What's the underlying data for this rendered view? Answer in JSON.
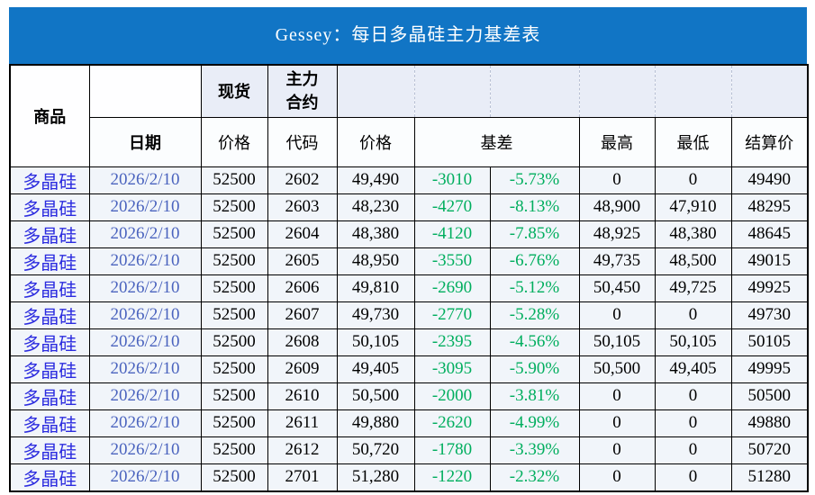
{
  "title": "Gessey：每日多晶硅主力基差表",
  "colors": {
    "title_bg": "#1175C5",
    "green": "#00AE5E",
    "com_blue": "#2B2BDF",
    "date_blue": "#4A63BE",
    "lav": "#E9EDF7",
    "row_bg": "#F1F5FA",
    "head2_bg": "#FBFDFE",
    "dash": "#B8C0D4"
  },
  "chart_data": {
    "type": "table",
    "title": "Gessey：每日多晶硅主力基差表",
    "header": {
      "commodity": "商品",
      "date": "日期",
      "spot": "现货",
      "main_contract": "主力合约",
      "price_spot": "价格",
      "code": "代码",
      "price_contract": "价格",
      "basis": "基差",
      "high": "最高",
      "low": "最低",
      "settlement": "结算价"
    },
    "rows": [
      {
        "commodity": "多晶硅",
        "date": "2026/2/10",
        "spot_price": "52500",
        "code": "2602",
        "price": "49,490",
        "basis": "-3010",
        "basis_pct": "-5.73%",
        "high": "0",
        "low": "0",
        "settle": "49490"
      },
      {
        "commodity": "多晶硅",
        "date": "2026/2/10",
        "spot_price": "52500",
        "code": "2603",
        "price": "48,230",
        "basis": "-4270",
        "basis_pct": "-8.13%",
        "high": "48,900",
        "low": "47,910",
        "settle": "48295"
      },
      {
        "commodity": "多晶硅",
        "date": "2026/2/10",
        "spot_price": "52500",
        "code": "2604",
        "price": "48,380",
        "basis": "-4120",
        "basis_pct": "-7.85%",
        "high": "48,925",
        "low": "48,380",
        "settle": "48645"
      },
      {
        "commodity": "多晶硅",
        "date": "2026/2/10",
        "spot_price": "52500",
        "code": "2605",
        "price": "48,950",
        "basis": "-3550",
        "basis_pct": "-6.76%",
        "high": "49,735",
        "low": "48,500",
        "settle": "49015"
      },
      {
        "commodity": "多晶硅",
        "date": "2026/2/10",
        "spot_price": "52500",
        "code": "2606",
        "price": "49,810",
        "basis": "-2690",
        "basis_pct": "-5.12%",
        "high": "50,450",
        "low": "49,725",
        "settle": "49925"
      },
      {
        "commodity": "多晶硅",
        "date": "2026/2/10",
        "spot_price": "52500",
        "code": "2607",
        "price": "49,730",
        "basis": "-2770",
        "basis_pct": "-5.28%",
        "high": "0",
        "low": "0",
        "settle": "49730"
      },
      {
        "commodity": "多晶硅",
        "date": "2026/2/10",
        "spot_price": "52500",
        "code": "2608",
        "price": "50,105",
        "basis": "-2395",
        "basis_pct": "-4.56%",
        "high": "50,105",
        "low": "50,105",
        "settle": "50105"
      },
      {
        "commodity": "多晶硅",
        "date": "2026/2/10",
        "spot_price": "52500",
        "code": "2609",
        "price": "49,405",
        "basis": "-3095",
        "basis_pct": "-5.90%",
        "high": "50,500",
        "low": "49,405",
        "settle": "49995"
      },
      {
        "commodity": "多晶硅",
        "date": "2026/2/10",
        "spot_price": "52500",
        "code": "2610",
        "price": "50,500",
        "basis": "-2000",
        "basis_pct": "-3.81%",
        "high": "0",
        "low": "0",
        "settle": "50500"
      },
      {
        "commodity": "多晶硅",
        "date": "2026/2/10",
        "spot_price": "52500",
        "code": "2611",
        "price": "49,880",
        "basis": "-2620",
        "basis_pct": "-4.99%",
        "high": "0",
        "low": "0",
        "settle": "49880"
      },
      {
        "commodity": "多晶硅",
        "date": "2026/2/10",
        "spot_price": "52500",
        "code": "2612",
        "price": "50,720",
        "basis": "-1780",
        "basis_pct": "-3.39%",
        "high": "0",
        "low": "0",
        "settle": "50720"
      },
      {
        "commodity": "多晶硅",
        "date": "2026/2/10",
        "spot_price": "52500",
        "code": "2701",
        "price": "51,280",
        "basis": "-1220",
        "basis_pct": "-2.32%",
        "high": "0",
        "low": "0",
        "settle": "51280"
      }
    ]
  }
}
